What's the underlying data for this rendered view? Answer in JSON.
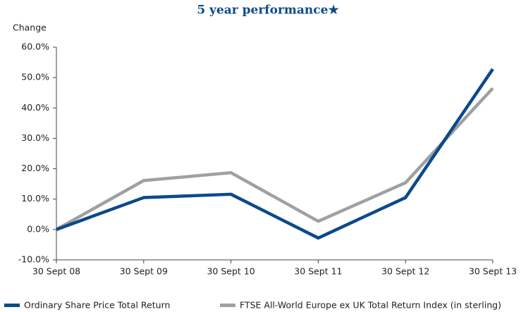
{
  "chart_data": {
    "type": "line",
    "title": "5 year performance★",
    "y_label": "Change",
    "categories": [
      "30 Sept 08",
      "30 Sept 09",
      "30 Sept 10",
      "30 Sept 11",
      "30 Sept 12",
      "30 Sept 13"
    ],
    "series": [
      {
        "name": "Ordinary Share Price Total Return",
        "color": "#0b4a8b",
        "values": [
          0,
          10.5,
          11.6,
          -2.8,
          10.5,
          52.8
        ]
      },
      {
        "name": "FTSE All-World Europe ex UK Total Return Index (in sterling)",
        "color": "#a0a0a0",
        "values": [
          0,
          16.1,
          18.7,
          2.7,
          15.4,
          46.5
        ]
      }
    ],
    "ylim": [
      -10,
      60
    ],
    "yticks": [
      {
        "value": -10,
        "label": "-10.0%"
      },
      {
        "value": 0,
        "label": "0.0%"
      },
      {
        "value": 10,
        "label": "10.0%"
      },
      {
        "value": 20,
        "label": "20.0%"
      },
      {
        "value": 30,
        "label": "30.0%"
      },
      {
        "value": 40,
        "label": "40.0%"
      },
      {
        "value": 50,
        "label": "50.0%"
      },
      {
        "value": 60,
        "label": "60.0%"
      }
    ],
    "grid": false
  }
}
